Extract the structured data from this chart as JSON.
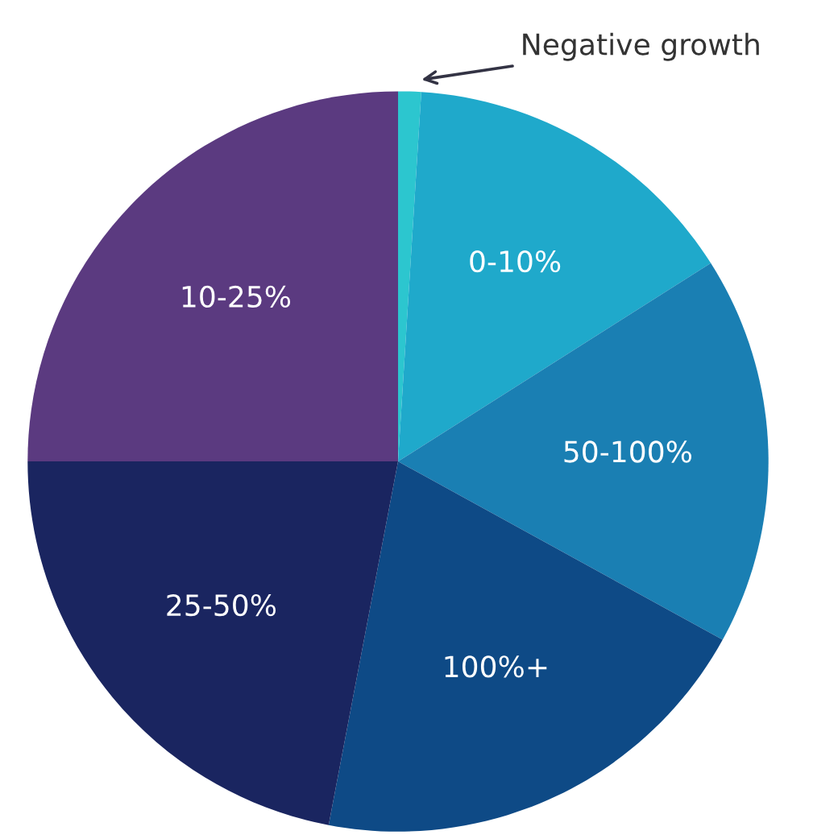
{
  "chart_data": {
    "type": "pie",
    "categories": [
      "Negative growth",
      "0-10%",
      "50-100%",
      "100%+",
      "25-50%",
      "10-25%"
    ],
    "values": [
      1,
      15,
      17,
      20,
      22,
      25
    ],
    "colors": [
      "#2cc6cf",
      "#1fa9cb",
      "#1a7fb3",
      "#0e4a86",
      "#1a2560",
      "#5b3a80"
    ],
    "legend": false
  }
}
